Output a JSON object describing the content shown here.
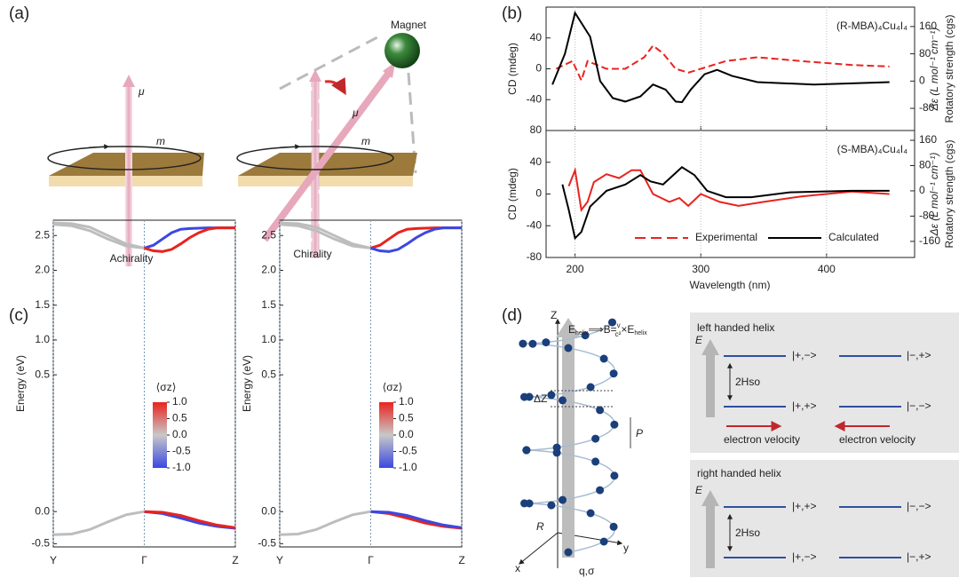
{
  "panel_a": {
    "label": "(a)",
    "magnet": "Magnet",
    "mu_left": "μ",
    "m_left": "m",
    "mu_right": "μ",
    "m_right": "m",
    "caption_left": "Achirality",
    "caption_right": "Chirality"
  },
  "panel_b": {
    "label": "(b)",
    "x_label": "Wavelength (nm)",
    "xlim": [
      177,
      470
    ],
    "xticks": [
      200,
      300,
      400
    ],
    "charts": [
      {
        "type": "line",
        "annotation": "(R-MBA)₄Cu₄I₄",
        "ylabel": "CD (mdeg)",
        "y2label": "Δε (L mol⁻¹ cm⁻¹)",
        "y2label2": "Rotatory strength (cgs)",
        "ylim": [
          -80,
          80
        ],
        "yticks": [
          -40,
          0,
          40
        ],
        "y2lim": [
          -145,
          217
        ],
        "y2ticks": [
          -80,
          0,
          80,
          160
        ],
        "series": [
          {
            "color": "#e8231f",
            "dash": true,
            "x": [
              185,
              198,
              205,
              210,
              225,
              240,
              255,
              262,
              270,
              280,
              290,
              300,
              320,
              345,
              380,
              420,
              450
            ],
            "values": [
              0,
              10,
              -15,
              10,
              0,
              0,
              15,
              30,
              20,
              0,
              -5,
              0,
              10,
              15,
              10,
              5,
              3
            ]
          },
          {
            "color": "#000000",
            "axis": "y2",
            "x": [
              182,
              192,
              200,
              212,
              220,
              230,
              240,
              252,
              262,
              272,
              280,
              285,
              292,
              303,
              313,
              325,
              345,
              390,
              450
            ],
            "values": [
              -10,
              80,
              200,
              130,
              0,
              -50,
              -60,
              -45,
              -10,
              -25,
              -60,
              -62,
              -25,
              20,
              33,
              15,
              -3,
              -10,
              -3
            ]
          }
        ]
      },
      {
        "type": "line",
        "annotation": "(S-MBA)₄Cu₄I₄",
        "ylabel": "CD (mdeg)",
        "y2label": "Δε (L mol⁻¹ cm⁻¹)",
        "y2label2": "Rotatory strength (cgs)",
        "ylim": [
          -80,
          80
        ],
        "yticks": [
          -80,
          -40,
          0,
          40,
          80
        ],
        "y2lim": [
          -211,
          191
        ],
        "y2ticks": [
          -160,
          -80,
          0,
          80,
          160
        ],
        "series": [
          {
            "name": "Experimental",
            "color": "#e8231f",
            "x": [
              195,
              200,
              205,
              210,
              215,
              225,
              235,
              245,
              252,
              262,
              275,
              283,
              290,
              300,
              315,
              330,
              350,
              380,
              420,
              450
            ],
            "values": [
              10,
              30,
              -20,
              -10,
              15,
              25,
              20,
              30,
              30,
              0,
              -10,
              -5,
              -15,
              0,
              -10,
              -15,
              -10,
              -3,
              3,
              0
            ]
          },
          {
            "name": "Calculated",
            "color": "#000000",
            "axis": "y2",
            "x": [
              190,
              195,
              200,
              205,
              212,
              225,
              240,
              252,
              260,
              270,
              285,
              295,
              305,
              320,
              340,
              370,
              420,
              450
            ],
            "values": [
              20,
              -60,
              -150,
              -130,
              -50,
              0,
              20,
              50,
              30,
              20,
              75,
              50,
              0,
              -20,
              -20,
              -5,
              0,
              0
            ]
          }
        ]
      }
    ]
  },
  "panel_c": {
    "label": "(c)",
    "charts": [
      {
        "type": "line",
        "ylabel": "Energy (eV)",
        "ylim": [
          -0.55,
          2.72
        ],
        "ybreak": [
          0.1,
          0.4
        ],
        "yticks": [
          -0.5,
          {
            "value": 0,
            "label": "0.0"
          },
          0.5,
          {
            "value": 1,
            "label": "1.0"
          },
          1.5,
          {
            "value": 2,
            "label": "2.0"
          },
          2.5
        ],
        "xlim": [
          -1,
          1
        ],
        "xticks": [
          {
            "value": -1,
            "label": "Y"
          },
          {
            "value": 0,
            "label": "Γ"
          },
          {
            "value": 1,
            "label": "Z"
          }
        ],
        "xgrid": true,
        "colorbar": {
          "label": "⟨σz⟩",
          "lim": [
            -1,
            1
          ],
          "colors": [
            "#3b48e0",
            "#c8c8c8",
            "#e8231f"
          ],
          "ticks": [
            {
              "value": 1,
              "label": "1.0"
            },
            0.5,
            {
              "value": 0,
              "label": "0.0"
            },
            -0.5,
            {
              "value": -1,
              "label": "-1.0"
            }
          ]
        },
        "series": [
          {
            "color": "#bdbdbd",
            "x": [
              -1,
              -0.8,
              -0.6,
              -0.4,
              -0.2,
              0
            ],
            "values": [
              2.68,
              2.67,
              2.62,
              2.5,
              2.38,
              2.32
            ]
          },
          {
            "color": "#bdbdbd",
            "x": [
              -1,
              -0.8,
              -0.6,
              -0.4,
              -0.2,
              0
            ],
            "values": [
              2.66,
              2.64,
              2.57,
              2.45,
              2.35,
              2.32
            ]
          },
          {
            "color": "#3b48e0",
            "x": [
              0,
              0.1,
              0.2,
              0.3,
              0.4,
              0.5,
              0.7,
              1
            ],
            "values": [
              2.32,
              2.36,
              2.45,
              2.54,
              2.59,
              2.6,
              2.61,
              2.61
            ]
          },
          {
            "color": "#e8231f",
            "x": [
              0,
              0.1,
              0.2,
              0.3,
              0.4,
              0.5,
              0.6,
              0.7,
              0.8,
              1
            ],
            "values": [
              2.32,
              2.28,
              2.27,
              2.3,
              2.38,
              2.47,
              2.54,
              2.59,
              2.61,
              2.61
            ]
          },
          {
            "color": "#bdbdbd",
            "x": [
              -1,
              -0.8,
              -0.6,
              -0.4,
              -0.2,
              0
            ],
            "values": [
              -0.36,
              -0.35,
              -0.28,
              -0.16,
              -0.05,
              0
            ]
          },
          {
            "color": "#3b48e0",
            "x": [
              0,
              0.2,
              0.4,
              0.6,
              0.8,
              1
            ],
            "values": [
              0,
              -0.03,
              -0.1,
              -0.18,
              -0.23,
              -0.26
            ]
          },
          {
            "color": "#e8231f",
            "x": [
              0,
              0.2,
              0.4,
              0.6,
              0.8,
              1
            ],
            "values": [
              0,
              -0.01,
              -0.06,
              -0.14,
              -0.21,
              -0.25
            ]
          }
        ]
      },
      {
        "type": "line",
        "ylabel": "Energy (eV)",
        "ylim": [
          -0.55,
          2.72
        ],
        "ybreak": [
          0.1,
          0.4
        ],
        "yticks": [
          -0.5,
          {
            "value": 0,
            "label": "0.0"
          },
          0.5,
          {
            "value": 1,
            "label": "1.0"
          },
          1.5,
          {
            "value": 2,
            "label": "2.0"
          },
          2.5
        ],
        "xlim": [
          -1,
          1
        ],
        "xticks": [
          {
            "value": -1,
            "label": "Y"
          },
          {
            "value": 0,
            "label": "Γ"
          },
          {
            "value": 1,
            "label": "Z"
          }
        ],
        "xgrid": true,
        "colorbar": {
          "label": "⟨σz⟩",
          "lim": [
            -1,
            1
          ],
          "colors": [
            "#3b48e0",
            "#c8c8c8",
            "#e8231f"
          ],
          "ticks": [
            {
              "value": 1,
              "label": "1.0"
            },
            0.5,
            {
              "value": 0,
              "label": "0.0"
            },
            -0.5,
            {
              "value": -1,
              "label": "-1.0"
            }
          ]
        },
        "series": [
          {
            "color": "#bdbdbd",
            "x": [
              -1,
              -0.8,
              -0.6,
              -0.4,
              -0.2,
              0
            ],
            "values": [
              2.68,
              2.67,
              2.62,
              2.5,
              2.38,
              2.32
            ]
          },
          {
            "color": "#bdbdbd",
            "x": [
              -1,
              -0.8,
              -0.6,
              -0.4,
              -0.2,
              0
            ],
            "values": [
              2.66,
              2.64,
              2.57,
              2.45,
              2.35,
              2.32
            ]
          },
          {
            "color": "#e8231f",
            "x": [
              0,
              0.1,
              0.2,
              0.3,
              0.4,
              0.5,
              0.7,
              1
            ],
            "values": [
              2.32,
              2.36,
              2.45,
              2.54,
              2.59,
              2.6,
              2.61,
              2.61
            ]
          },
          {
            "color": "#3b48e0",
            "x": [
              0,
              0.1,
              0.2,
              0.3,
              0.4,
              0.5,
              0.6,
              0.7,
              0.8,
              1
            ],
            "values": [
              2.32,
              2.28,
              2.27,
              2.3,
              2.38,
              2.47,
              2.54,
              2.59,
              2.61,
              2.61
            ]
          },
          {
            "color": "#bdbdbd",
            "x": [
              -1,
              -0.8,
              -0.6,
              -0.4,
              -0.2,
              0
            ],
            "values": [
              -0.36,
              -0.35,
              -0.28,
              -0.16,
              -0.05,
              0
            ]
          },
          {
            "color": "#e8231f",
            "x": [
              0,
              0.2,
              0.4,
              0.6,
              0.8,
              1
            ],
            "values": [
              0,
              -0.03,
              -0.1,
              -0.18,
              -0.23,
              -0.26
            ]
          },
          {
            "color": "#3b48e0",
            "x": [
              0,
              0.2,
              0.4,
              0.6,
              0.8,
              1
            ],
            "values": [
              0,
              -0.01,
              -0.06,
              -0.14,
              -0.21,
              -0.25
            ]
          }
        ]
      }
    ]
  },
  "panel_d": {
    "label": "(d)",
    "helix": {
      "z": "Z",
      "formula": {
        "e1": "E",
        "sub1": "helix",
        "mid": "⟹B=",
        "num": "v",
        "den": "c²",
        "times": "×E",
        "sub2": "helix"
      },
      "dz": "ΔZ",
      "p": "P",
      "r": "R",
      "y": "y",
      "x": "x",
      "q": "q,σ"
    },
    "left_box": {
      "title": "left handed helix",
      "e": "E",
      "upper": [
        "|+,−>",
        "|−,+>"
      ],
      "gap": "2Hso",
      "lower": [
        "|+,+>",
        "|−,−>"
      ],
      "velocity": [
        "electron velocity",
        "electron velocity"
      ]
    },
    "right_box": {
      "title": "right handed helix",
      "e": "E",
      "upper": [
        "|+,+>",
        "|−,−>"
      ],
      "gap": "2Hso",
      "lower": [
        "|+,−>",
        "|−,+>"
      ]
    }
  }
}
